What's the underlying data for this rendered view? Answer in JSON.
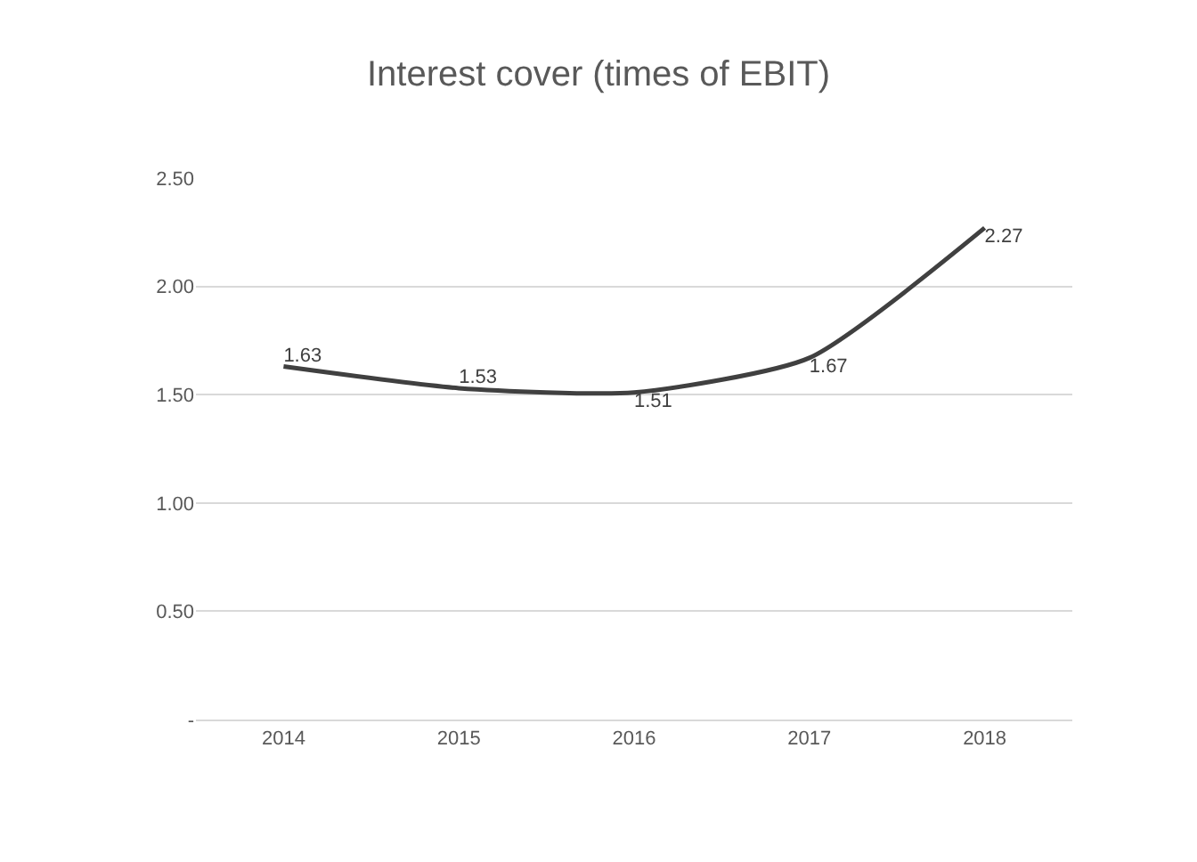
{
  "chart_data": {
    "type": "line",
    "title": "Interest cover (times of EBIT)",
    "categories": [
      "2014",
      "2015",
      "2016",
      "2017",
      "2018"
    ],
    "series": [
      {
        "color": "#404040",
        "values": [
          1.63,
          1.53,
          1.51,
          1.67,
          2.27
        ]
      }
    ],
    "ylim": [
      0,
      2.5
    ],
    "yticks": [
      {
        "value": 0,
        "label": "-"
      },
      {
        "value": 0.5,
        "label": "0.50"
      },
      {
        "value": 1,
        "label": "1.00"
      },
      {
        "value": 1.5,
        "label": "1.50"
      },
      {
        "value": 2,
        "label": "2.00"
      },
      {
        "value": 2.5,
        "label": "2.50"
      }
    ],
    "grid": "y",
    "data_labels": true,
    "marker": "none",
    "line_style": "solid"
  }
}
